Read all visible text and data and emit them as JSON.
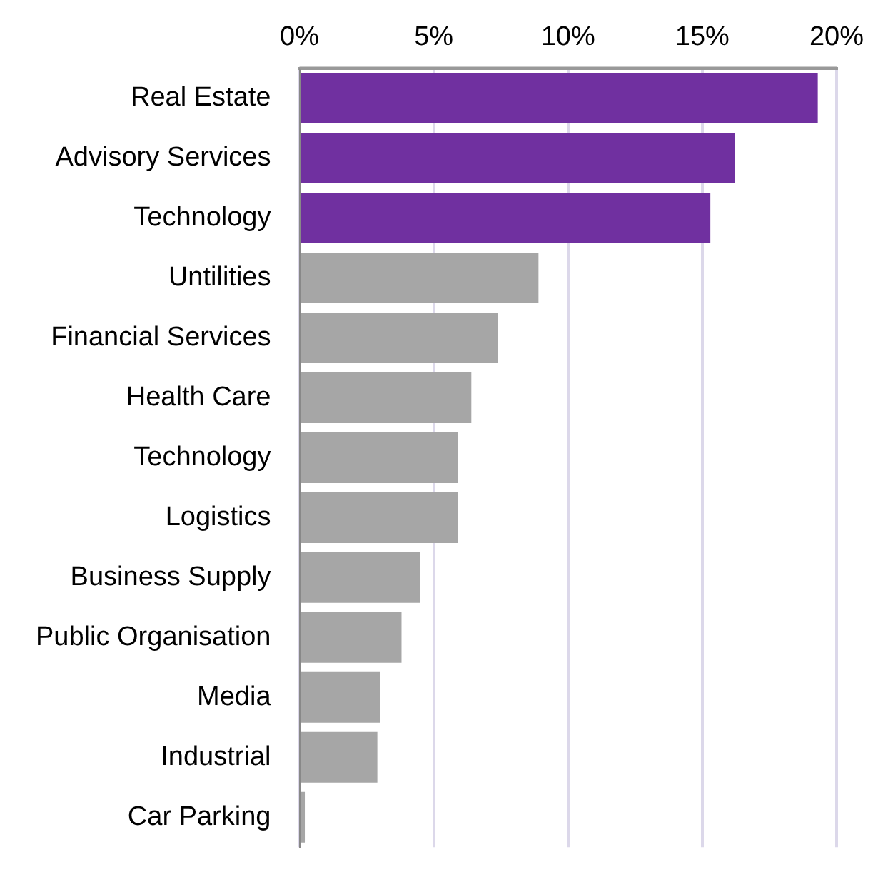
{
  "chart_data": {
    "type": "bar",
    "orientation": "horizontal",
    "categories": [
      "Real Estate",
      "Advisory Services",
      "Technology",
      "Untilities",
      "Financial Services",
      "Health Care",
      "Technology",
      "Logistics",
      "Business Supply",
      "Public Organisation",
      "Media",
      "Industrial",
      "Car Parking"
    ],
    "values": [
      19.3,
      16.2,
      15.3,
      8.9,
      7.4,
      6.4,
      5.9,
      5.9,
      4.5,
      3.8,
      3.0,
      2.9,
      0.2
    ],
    "colors": [
      "#7030a0",
      "#7030a0",
      "#7030a0",
      "#a6a6a6",
      "#a6a6a6",
      "#a6a6a6",
      "#a6a6a6",
      "#a6a6a6",
      "#a6a6a6",
      "#a6a6a6",
      "#a6a6a6",
      "#a6a6a6",
      "#a6a6a6"
    ],
    "xlim": [
      0,
      20
    ],
    "xticks": [
      {
        "value": 0,
        "label": "0%"
      },
      {
        "value": 5,
        "label": "5%"
      },
      {
        "value": 10,
        "label": "10%"
      },
      {
        "value": 15,
        "label": "15%"
      },
      {
        "value": 20,
        "label": "20%"
      }
    ],
    "grid": "x"
  }
}
